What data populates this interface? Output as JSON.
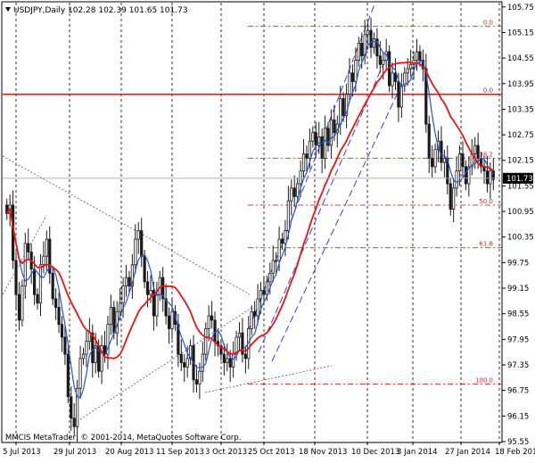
{
  "header": {
    "symbol": "USDJPY,Daily",
    "ohlc": "102.28 102.39 101.65 101.73"
  },
  "footer": {
    "copyright": "MMCIS MetaTrader, © 2001-2014, MetaQuotes Software Corp."
  },
  "colors": {
    "candle": "#1a1a1a",
    "fast_ma": "#2255dd",
    "slow_ma": "#ee1111",
    "fib": "#dd2222",
    "channel": "#3344cc",
    "trend": "#555555",
    "current_price_line": "#aaaaaa",
    "price_tag_bg": "#000000"
  },
  "chart_data": {
    "type": "candlestick",
    "ylim": [
      95.55,
      105.85
    ],
    "y_ticks": [
      "105.75",
      "105.15",
      "104.55",
      "103.95",
      "103.35",
      "102.75",
      "102.15",
      "101.55",
      "100.95",
      "100.35",
      "99.75",
      "99.15",
      "98.55",
      "97.95",
      "97.35",
      "96.75",
      "96.15",
      "95.55"
    ],
    "x_ticks": [
      "5 Jul 2013",
      "29 Jul 2013",
      "20 Aug 2013",
      "11 Sep 2013",
      "3 Oct 2013",
      "25 Oct 2013",
      "18 Nov 2013",
      "10 Dec 2013",
      "3 Jan 2014",
      "27 Jan 2014",
      "18 Feb 2014"
    ],
    "current_price": "101.73",
    "horizontal_line": 103.7,
    "fibonacci": [
      {
        "label": "0.0",
        "value": 105.3
      },
      {
        "label": "0.0",
        "value": 103.7
      },
      {
        "label": "38.2",
        "value": 102.2
      },
      {
        "label": "50.0",
        "value": 101.1
      },
      {
        "label": "61.8",
        "value": 100.1
      },
      {
        "label": "100.0",
        "value": 96.9
      }
    ],
    "closes": [
      100.9,
      101.1,
      99.8,
      99.0,
      98.4,
      99.2,
      100.2,
      100.0,
      99.6,
      99.0,
      98.8,
      99.7,
      99.9,
      100.3,
      99.5,
      98.9,
      98.7,
      98.3,
      98.0,
      97.6,
      96.6,
      96.1,
      95.9,
      96.8,
      97.5,
      97.6,
      97.9,
      98.1,
      97.4,
      97.8,
      97.2,
      97.8,
      97.6,
      98.3,
      98.7,
      98.1,
      98.6,
      98.8,
      99.2,
      99.4,
      99.2,
      99.7,
      100.3,
      100.5,
      99.9,
      99.3,
      99.0,
      99.1,
      98.5,
      99.0,
      99.4,
      98.9,
      98.5,
      98.2,
      98.6,
      98.3,
      97.6,
      97.4,
      97.3,
      97.5,
      97.8,
      97.0,
      96.9,
      97.2,
      97.6,
      98.2,
      98.5,
      98.4,
      97.9,
      97.8,
      97.6,
      97.4,
      97.5,
      97.3,
      97.6,
      98.0,
      98.1,
      97.6,
      97.5,
      98.2,
      98.6,
      98.5,
      98.9,
      99.1,
      99.0,
      99.3,
      99.5,
      99.8,
      99.8,
      100.3,
      100.2,
      100.5,
      101.2,
      101.5,
      101.3,
      101.6,
      101.9,
      102.3,
      102.2,
      102.6,
      102.8,
      102.5,
      102.7,
      102.2,
      102.9,
      102.5,
      103.1,
      102.8,
      103.0,
      103.6,
      103.2,
      103.7,
      104.2,
      104.0,
      104.5,
      104.9,
      104.6,
      105.1,
      105.2,
      104.8,
      105.0,
      104.6,
      104.4,
      104.5,
      104.7,
      103.9,
      104.2,
      104.0,
      103.4,
      103.9,
      104.2,
      104.3,
      104.4,
      104.5,
      104.7,
      104.5,
      104.3,
      103.0,
      102.2,
      102.0,
      102.4,
      102.6,
      102.1,
      102.2,
      101.6,
      101.0,
      101.5,
      101.9,
      102.3,
      102.0,
      101.6,
      102.0,
      102.3,
      102.5,
      102.2,
      102.0,
      101.9,
      101.6,
      101.9,
      101.7
    ]
  }
}
